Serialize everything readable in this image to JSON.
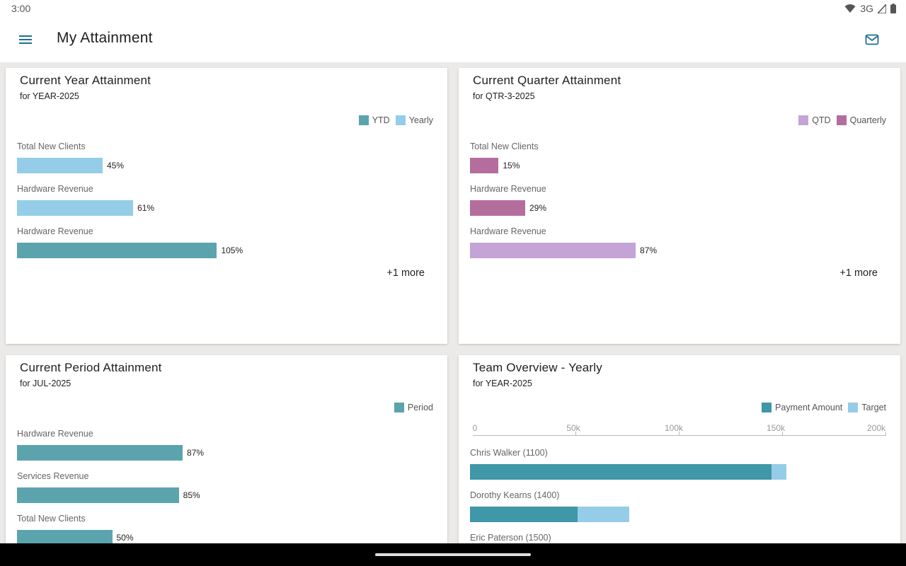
{
  "status": {
    "time": "3:00",
    "network": "3G",
    "icons": [
      "wifi-icon",
      "signal-icon",
      "battery-icon"
    ]
  },
  "appbar": {
    "title": "My Attainment",
    "menu_icon": "menu-icon",
    "mail_icon": "mail-icon"
  },
  "colors": {
    "ytd": "#5ba4ae",
    "yearly": "#95cde9",
    "qtd": "#c4a3d6",
    "quarterly": "#b56d9e",
    "period": "#5ba4ae",
    "payment": "#3f97a8",
    "target": "#95cde9",
    "accent": "#1e6f93"
  },
  "cards": {
    "year": {
      "title": "Current Year Attainment",
      "subtitle": "for YEAR-2025",
      "legend": [
        "YTD",
        "Yearly"
      ],
      "more": "+1 more"
    },
    "quarter": {
      "title": "Current Quarter Attainment",
      "subtitle": "for QTR-3-2025",
      "legend": [
        "QTD",
        "Quarterly"
      ],
      "more": "+1 more"
    },
    "period": {
      "title": "Current Period Attainment",
      "subtitle": "for JUL-2025",
      "legend": [
        "Period"
      ]
    },
    "team": {
      "title": "Team Overview - Yearly",
      "subtitle": "for YEAR-2025",
      "legend": [
        "Payment Amount",
        "Target"
      ]
    }
  },
  "chart_data": [
    {
      "type": "bar",
      "title": "Current Year Attainment",
      "bars": [
        {
          "label": "Total New Clients",
          "value": 45,
          "display": "45%",
          "series": "Yearly"
        },
        {
          "label": "Hardware Revenue",
          "value": 61,
          "display": "61%",
          "series": "Yearly"
        },
        {
          "label": "Hardware Revenue",
          "value": 105,
          "display": "105%",
          "series": "YTD"
        }
      ]
    },
    {
      "type": "bar",
      "title": "Current Quarter Attainment",
      "bars": [
        {
          "label": "Total New Clients",
          "value": 15,
          "display": "15%",
          "series": "Quarterly"
        },
        {
          "label": "Hardware Revenue",
          "value": 29,
          "display": "29%",
          "series": "Quarterly"
        },
        {
          "label": "Hardware Revenue",
          "value": 87,
          "display": "87%",
          "series": "QTD"
        }
      ]
    },
    {
      "type": "bar",
      "title": "Current Period Attainment",
      "bars": [
        {
          "label": "Hardware Revenue",
          "value": 87,
          "display": "87%",
          "series": "Period"
        },
        {
          "label": "Services Revenue",
          "value": 85,
          "display": "85%",
          "series": "Period"
        },
        {
          "label": "Total New Clients",
          "value": 50,
          "display": "50%",
          "series": "Period"
        }
      ]
    },
    {
      "type": "bar",
      "title": "Team Overview - Yearly",
      "xticks": [
        "0",
        "50k",
        "100k",
        "150k",
        "200k"
      ],
      "xlim": [
        0,
        200000
      ],
      "rows": [
        {
          "label": "Chris Walker (1100)",
          "payment": 146000,
          "target": 153000
        },
        {
          "label": "Dorothy Kearns (1400)",
          "payment": 52000,
          "target": 77000
        },
        {
          "label": "Eric Paterson (1500)"
        }
      ]
    }
  ]
}
